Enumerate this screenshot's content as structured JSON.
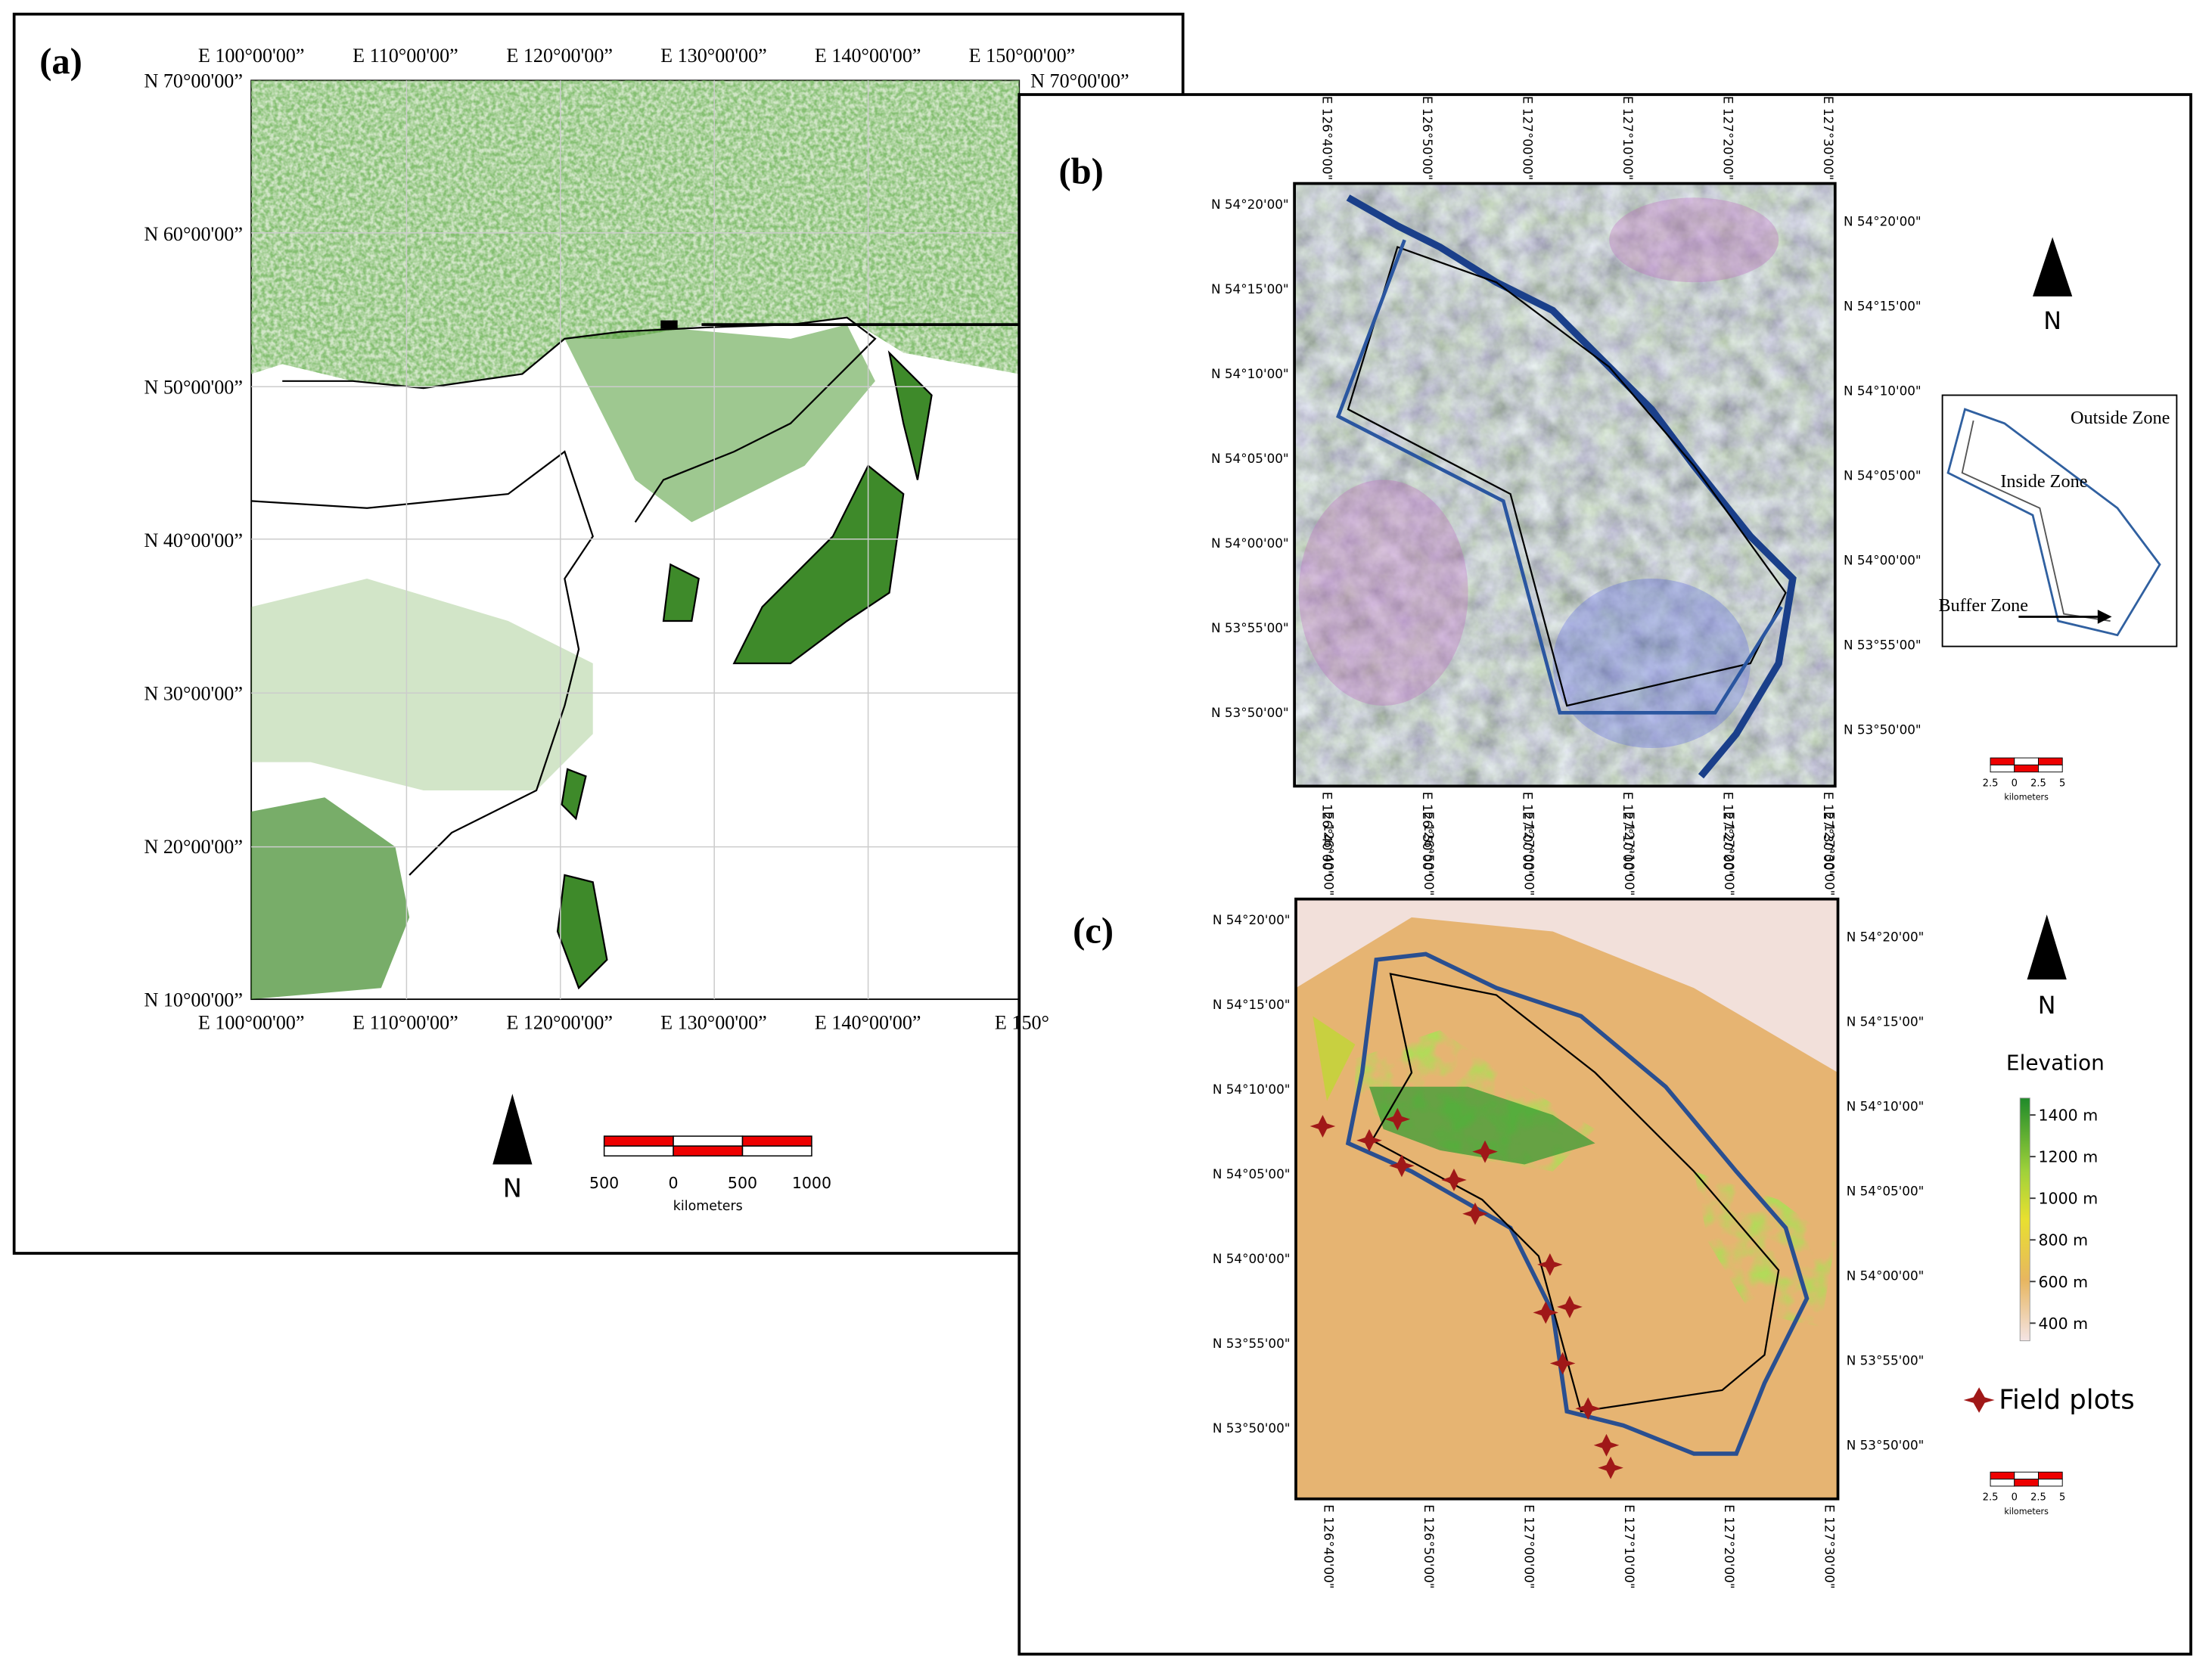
{
  "panel_a": {
    "label": "(a)",
    "top_ticks": [
      "E 100°00'00”",
      "E 110°00'00”",
      "E 120°00'00”",
      "E 130°00'00”",
      "E 140°00'00”",
      "E 150°00'00”"
    ],
    "bottom_ticks": [
      "E 100°00'00”",
      "E 110°00'00”",
      "E 120°00'00”",
      "E 130°00'00”",
      "E 140°00'00”",
      "E 150°"
    ],
    "left_ticks": [
      "N 70°00'00”",
      "N 60°00'00”",
      "N 50°00'00”",
      "N 40°00'00”",
      "N 30°00'00”",
      "N 20°00'00”",
      "N 10°00'00”"
    ],
    "right_tick": "N 70°00'00”",
    "north": "N",
    "scale_labels": [
      "500",
      "0",
      "500",
      "1000"
    ],
    "scale_unit": "kilometers"
  },
  "panel_b": {
    "label": "(b)",
    "x_ticks": [
      "E 126°40'00\"",
      "E 126°50'00\"",
      "E 127°00'00\"",
      "E 127°10'00\"",
      "E 127°20'00\"",
      "E 127°30'00\""
    ],
    "y_ticks": [
      "N 54°20'00\"",
      "N 54°15'00\"",
      "N 54°10'00\"",
      "N 54°05'00\"",
      "N 54°00'00\"",
      "N 53°55'00\"",
      "N 53°50'00\""
    ],
    "north": "N",
    "zones": [
      "Outside Zone",
      "Inside Zone",
      "Buffer Zone"
    ],
    "scale_labels": [
      "2.5",
      "0",
      "2.5",
      "5"
    ],
    "scale_unit": "kilometers"
  },
  "panel_c": {
    "label": "(c)",
    "x_ticks": [
      "E 126°40'00\"",
      "E 126°50'00\"",
      "E 127°00'00\"",
      "E 127°10'00\"",
      "E 127°20'00\"",
      "E 127°30'00\""
    ],
    "y_ticks": [
      "N 54°20'00\"",
      "N 54°15'00\"",
      "N 54°10'00\"",
      "N 54°05'00\"",
      "N 54°00'00\"",
      "N 53°55'00\"",
      "N 53°50'00\""
    ],
    "north": "N",
    "legend_title": "Elevation",
    "elevation_labels": [
      "1400 m",
      "1200 m",
      "1000 m",
      "800 m",
      "600 m",
      "400 m"
    ],
    "field_plots": "Field plots",
    "scale_labels": [
      "2.5",
      "0",
      "2.5",
      "5"
    ],
    "scale_unit": "kilometers"
  }
}
